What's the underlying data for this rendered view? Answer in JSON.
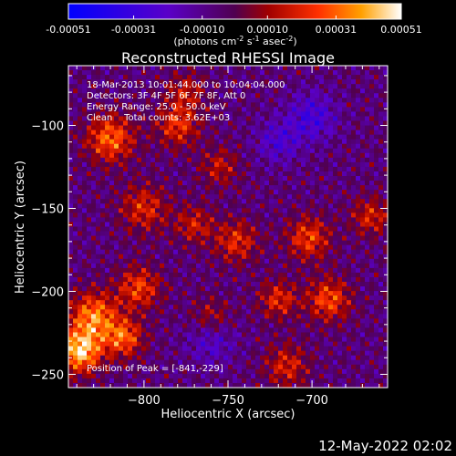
{
  "chart_data": {
    "type": "heatmap",
    "title": "Reconstructed RHESSI Image",
    "xlabel": "Heliocentric X (arcsec)",
    "ylabel": "Heliocentric Y (arcsec)",
    "xlim": [
      -845,
      -655
    ],
    "ylim": [
      -258,
      -64
    ],
    "xticks": [
      -800,
      -750,
      -700
    ],
    "yticks": [
      -250,
      -200,
      -150,
      -100
    ],
    "colorbar": {
      "min": -0.00051,
      "max": 0.00051,
      "ticks": [
        -0.00051,
        -0.00031,
        -0.0001,
        0.0001,
        0.00031,
        0.00051
      ],
      "tick_labels": [
        "-0.00051",
        "-0.00031",
        "-0.00010",
        "0.00010",
        "0.00031",
        "0.00051"
      ],
      "unit_label": "(photons cm",
      "unit_exp1": "-2",
      "unit_mid": " s",
      "unit_exp2": "-1",
      "unit_mid2": " asec",
      "unit_exp3": "-2",
      "unit_end": ")"
    },
    "annotations": [
      "18-Mar-2013 10:01:44.000 to 10:04:04.000",
      "Detectors: 3F 4F 5F 6F 7F 8F, Att 0",
      "Energy Range: 25.0 - 50.0 keV",
      "Clean    Total counts: 3.62E+03"
    ],
    "peak_label": "Position of Peak = [-841,-229]",
    "peak": [
      -841,
      -229
    ],
    "map_generator": {
      "grid": 70,
      "sources": [
        {
          "x": -838,
          "y": -236,
          "amp": 0.00051,
          "sigma": 9
        },
        {
          "x": -830,
          "y": -215,
          "amp": 0.0004,
          "sigma": 10
        },
        {
          "x": -812,
          "y": -228,
          "amp": 0.00035,
          "sigma": 8
        },
        {
          "x": -803,
          "y": -198,
          "amp": 0.0003,
          "sigma": 9
        },
        {
          "x": -820,
          "y": -108,
          "amp": 0.00036,
          "sigma": 10
        },
        {
          "x": -780,
          "y": -100,
          "amp": 0.00028,
          "sigma": 9
        },
        {
          "x": -800,
          "y": -150,
          "amp": 0.00025,
          "sigma": 10
        },
        {
          "x": -770,
          "y": -160,
          "amp": 0.00022,
          "sigma": 8
        },
        {
          "x": -745,
          "y": -170,
          "amp": 0.00026,
          "sigma": 9
        },
        {
          "x": -755,
          "y": -125,
          "amp": 0.0002,
          "sigma": 8
        },
        {
          "x": -702,
          "y": -168,
          "amp": 0.0003,
          "sigma": 9
        },
        {
          "x": -690,
          "y": -205,
          "amp": 0.00032,
          "sigma": 9
        },
        {
          "x": -720,
          "y": -205,
          "amp": 0.00026,
          "sigma": 8
        },
        {
          "x": -665,
          "y": -155,
          "amp": 0.00024,
          "sigma": 8
        },
        {
          "x": -715,
          "y": -245,
          "amp": 0.00024,
          "sigma": 9
        },
        {
          "x": -760,
          "y": -215,
          "amp": 0.00018,
          "sigma": 8
        },
        {
          "x": -700,
          "y": -95,
          "amp": -0.00022,
          "sigma": 10
        },
        {
          "x": -720,
          "y": -110,
          "amp": -0.00018,
          "sigma": 9
        },
        {
          "x": -760,
          "y": -230,
          "amp": -0.00016,
          "sigma": 10
        },
        {
          "x": -775,
          "y": -80,
          "amp": 0.0002,
          "sigma": 8
        }
      ]
    }
  },
  "footer": {
    "timestamp": "12-May-2022 02:02"
  }
}
